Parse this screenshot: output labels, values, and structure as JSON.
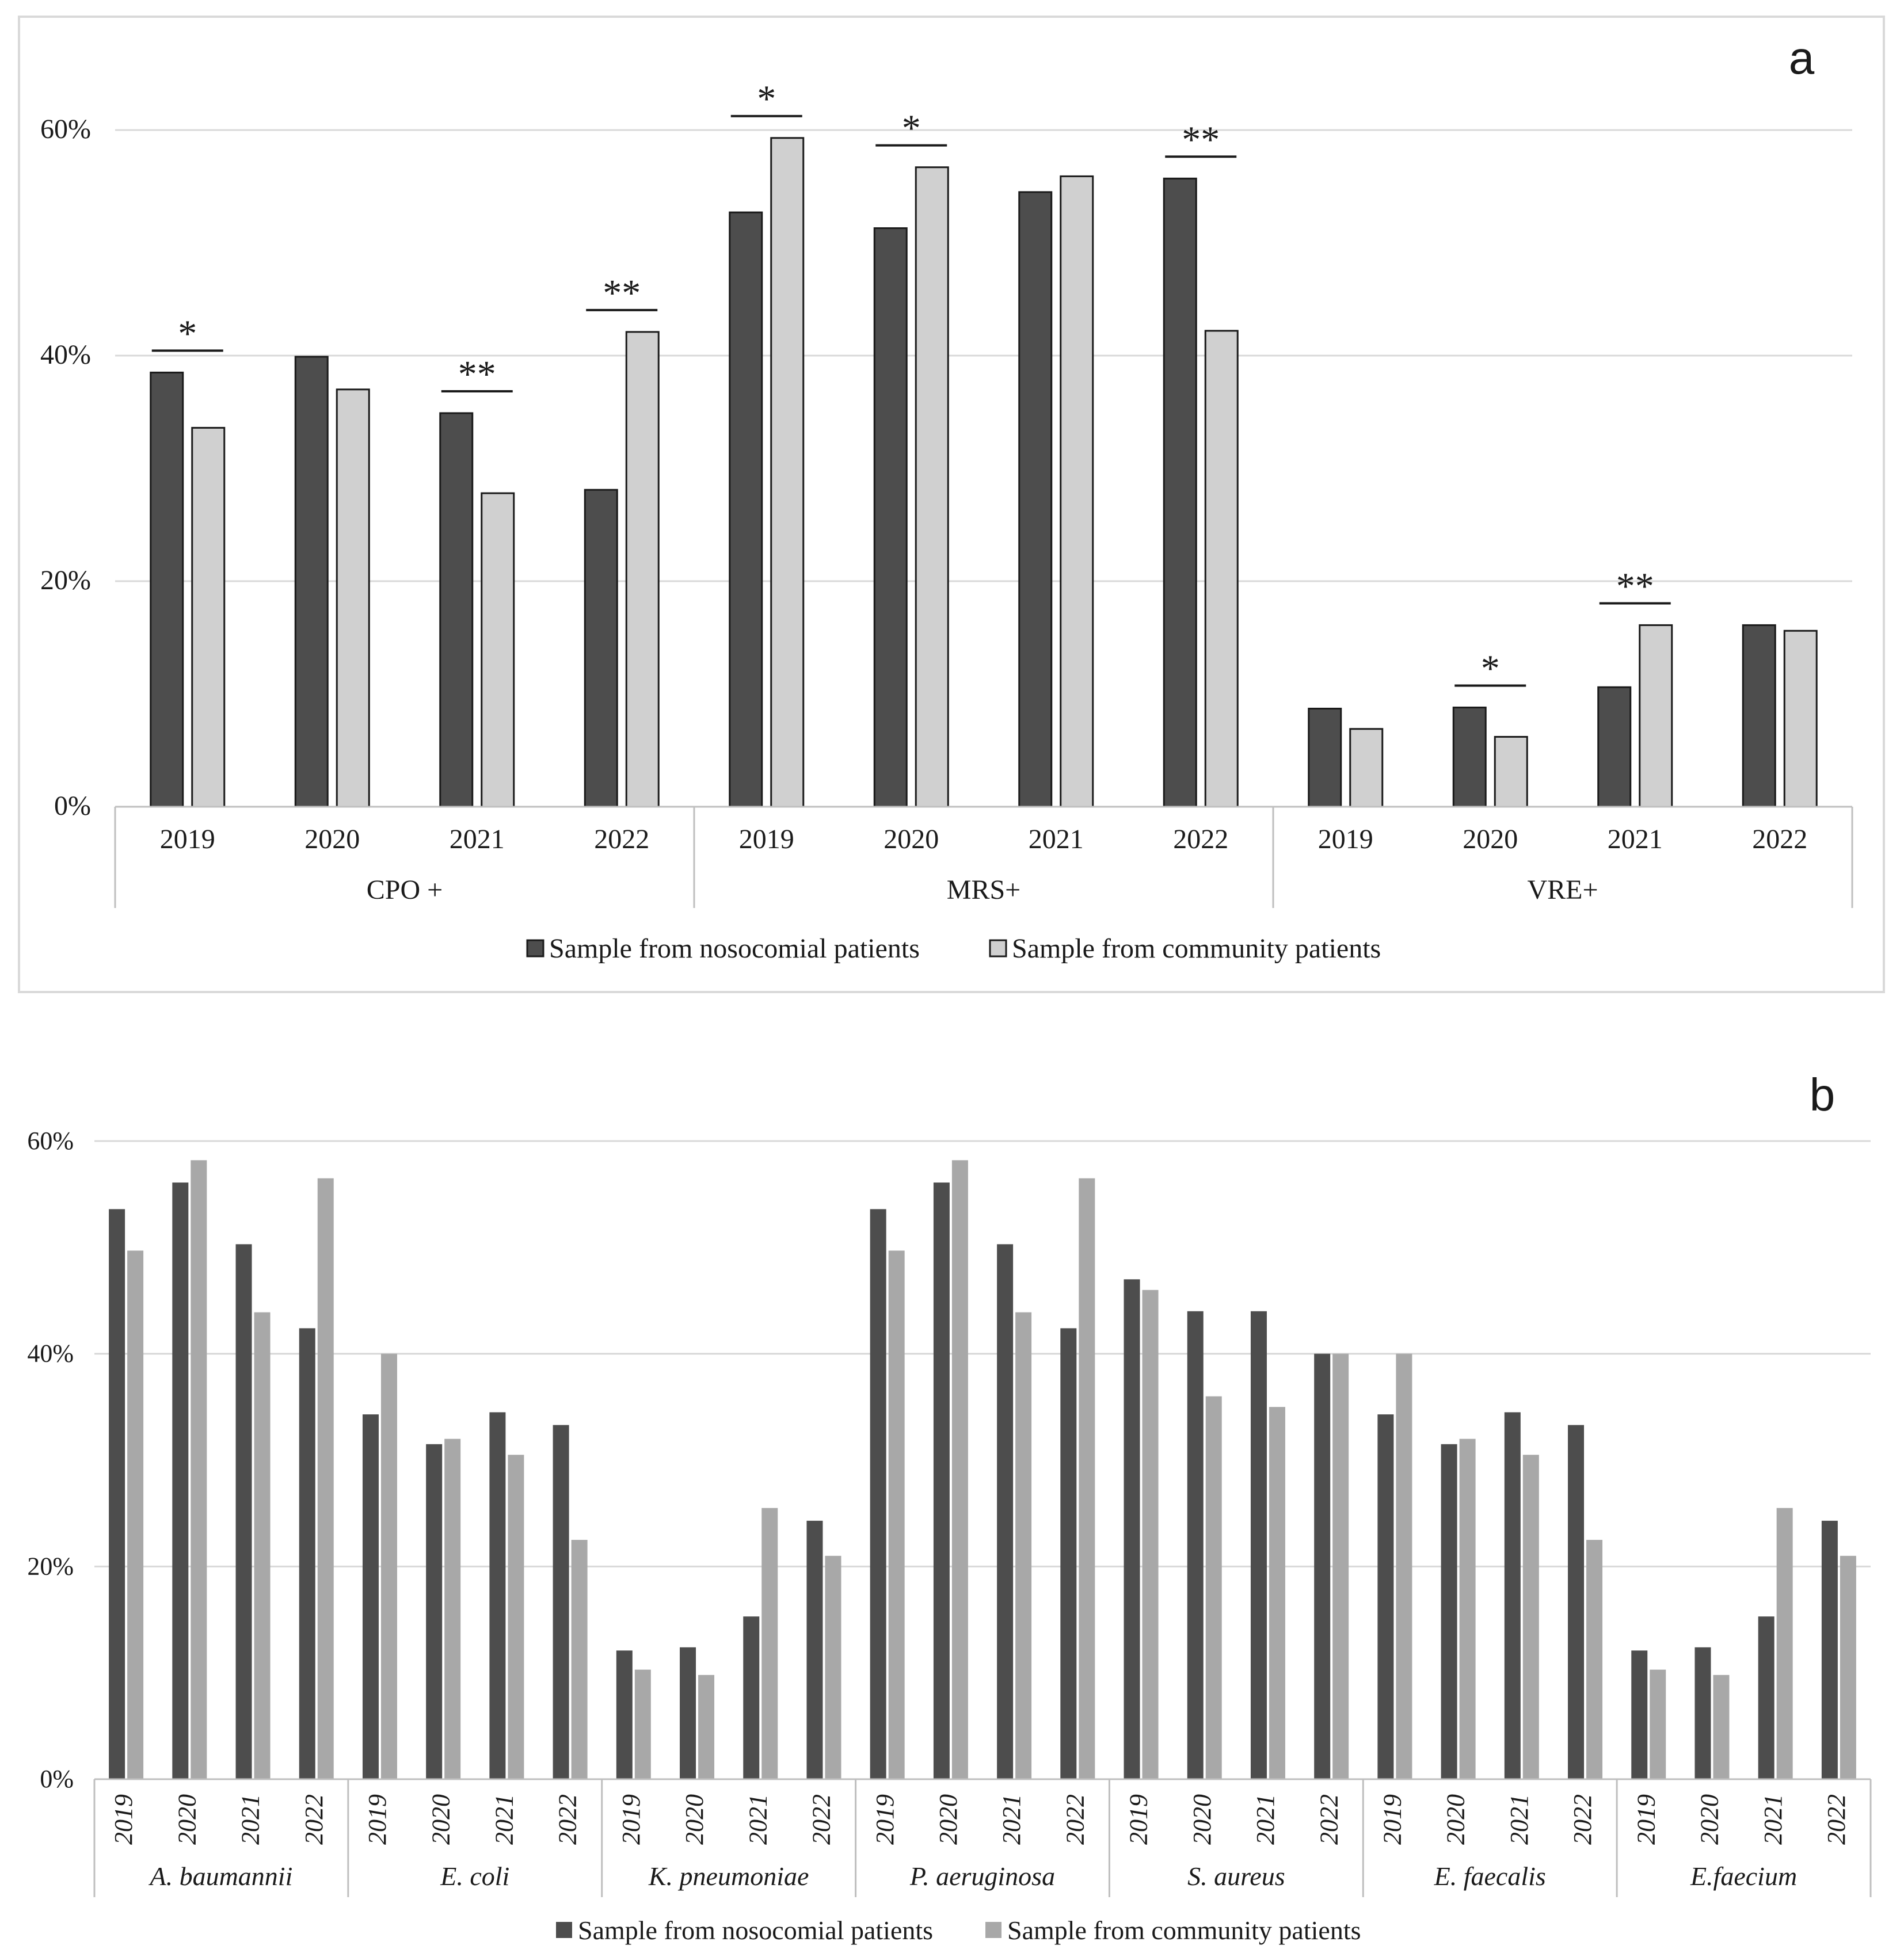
{
  "figure": {
    "colors": {
      "nosocomial_a": "#4d4d4d",
      "community_a": "#d0d0d0",
      "nosocomial_b": "#4d4d4d",
      "community_b": "#a8a8a8",
      "grid": "#d9d9d9",
      "axis": "#bfbfbf",
      "bar_outline": "#1a1a1a"
    }
  },
  "chart_data": [
    {
      "panel": "a",
      "type": "bar",
      "ytick_labels": [
        "0%",
        "20%",
        "40%",
        "60%"
      ],
      "ylim": [
        0,
        0.6
      ],
      "grid": true,
      "legend": "bottom",
      "legend_labels": [
        "Sample from nosocomial patients",
        "Sample from community patients"
      ],
      "groups": [
        {
          "label": "CPO +",
          "categories": [
            "2019",
            "2020",
            "2021",
            "2022"
          ]
        },
        {
          "label": "MRS+",
          "categories": [
            "2019",
            "2020",
            "2021",
            "2022"
          ]
        },
        {
          "label": "VRE+",
          "categories": [
            "2019",
            "2020",
            "2021",
            "2022"
          ]
        }
      ],
      "series": [
        {
          "name": "Sample from nosocomial patients",
          "values": [
            0.385,
            0.399,
            0.349,
            0.281,
            0.527,
            0.513,
            0.545,
            0.557,
            0.087,
            0.088,
            0.106,
            0.161
          ]
        },
        {
          "name": "Sample from community patients",
          "values": [
            0.336,
            0.37,
            0.278,
            0.421,
            0.593,
            0.567,
            0.559,
            0.422,
            0.069,
            0.062,
            0.161,
            0.156
          ]
        }
      ],
      "significance": [
        {
          "index": 0,
          "mark": "*"
        },
        {
          "index": 2,
          "mark": "**"
        },
        {
          "index": 3,
          "mark": "**"
        },
        {
          "index": 4,
          "mark": "*"
        },
        {
          "index": 5,
          "mark": "*"
        },
        {
          "index": 7,
          "mark": "**"
        },
        {
          "index": 9,
          "mark": "*"
        },
        {
          "index": 10,
          "mark": "**"
        }
      ]
    },
    {
      "panel": "b",
      "type": "bar",
      "ytick_labels": [
        "0%",
        "20%",
        "40%",
        "60%"
      ],
      "ylim": [
        0,
        0.6
      ],
      "grid": true,
      "legend": "bottom",
      "legend_labels": [
        "Sample from nosocomial patients",
        "Sample from community patients"
      ],
      "groups": [
        {
          "label": "A. baumannii",
          "categories": [
            "2019",
            "2020",
            "2021",
            "2022"
          ]
        },
        {
          "label": "E. coli",
          "categories": [
            "2019",
            "2020",
            "2021",
            "2022"
          ]
        },
        {
          "label": "K. pneumoniae",
          "categories": [
            "2019",
            "2020",
            "2021",
            "2022"
          ]
        },
        {
          "label": "P. aeruginosa",
          "categories": [
            "2019",
            "2020",
            "2021",
            "2022"
          ]
        },
        {
          "label": "S. aureus",
          "categories": [
            "2019",
            "2020",
            "2021",
            "2022"
          ]
        },
        {
          "label": "E. faecalis",
          "categories": [
            "2019",
            "2020",
            "2021",
            "2022"
          ]
        },
        {
          "label": "E.faecium",
          "categories": [
            "2019",
            "2020",
            "2021",
            "2022"
          ]
        }
      ],
      "series": [
        {
          "name": "Sample from nosocomial patients",
          "values": [
            0.536,
            0.561,
            0.503,
            0.424,
            0.343,
            0.315,
            0.345,
            0.333,
            0.121,
            0.124,
            0.153,
            0.243,
            0.536,
            0.561,
            0.503,
            0.424,
            0.47,
            0.44,
            0.44,
            0.4,
            0.343,
            0.315,
            0.345,
            0.333,
            0.121,
            0.124,
            0.153,
            0.243
          ]
        },
        {
          "name": "Sample from community patients",
          "values": [
            0.497,
            0.582,
            0.439,
            0.565,
            0.4,
            0.32,
            0.305,
            0.225,
            0.103,
            0.098,
            0.255,
            0.21,
            0.497,
            0.582,
            0.439,
            0.565,
            0.46,
            0.36,
            0.35,
            0.4,
            0.4,
            0.32,
            0.305,
            0.225,
            0.103,
            0.098,
            0.255,
            0.21
          ]
        }
      ]
    }
  ]
}
